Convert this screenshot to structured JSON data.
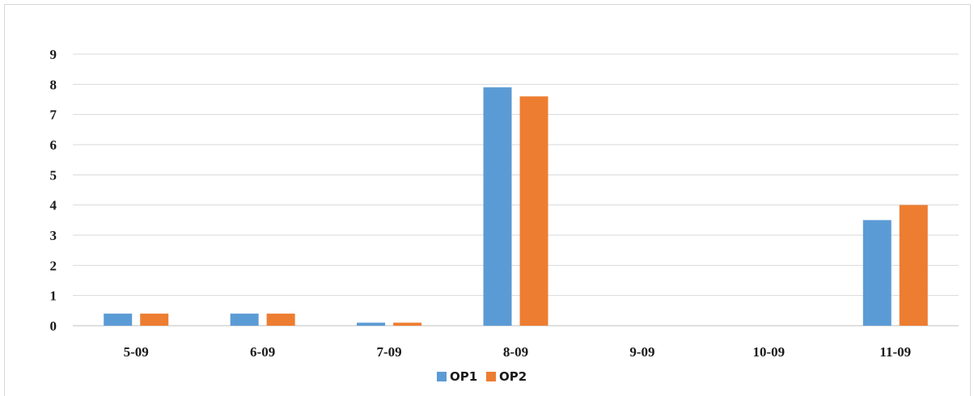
{
  "chart_data": {
    "type": "bar",
    "title": "",
    "xlabel": "",
    "ylabel": "",
    "categories": [
      "5-09",
      "6-09",
      "7-09",
      "8-09",
      "9-09",
      "10-09",
      "11-09"
    ],
    "series": [
      {
        "name": "OP1",
        "color": "#5b9bd5",
        "values": [
          0.4,
          0.4,
          0.1,
          7.9,
          0,
          0,
          3.5
        ]
      },
      {
        "name": "OP2",
        "color": "#ed7d31",
        "values": [
          0.4,
          0.4,
          0.1,
          7.6,
          0,
          0,
          4.0
        ]
      }
    ],
    "ylim": [
      0,
      9
    ],
    "yticks": [
      "0",
      "1",
      "2",
      "3",
      "4",
      "5",
      "6",
      "7",
      "8",
      "9"
    ],
    "grid": true,
    "legend_position": "bottom"
  }
}
